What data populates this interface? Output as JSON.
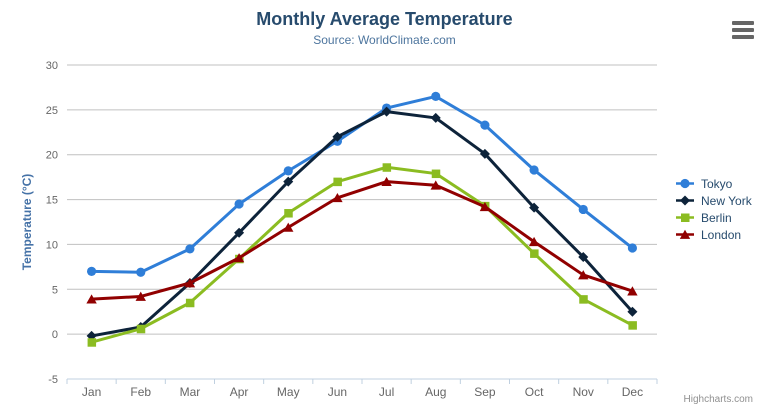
{
  "title": "Monthly Average Temperature",
  "subtitle": "Source: WorldClimate.com",
  "credits": "Highcharts.com",
  "export_menu_icon": "hamburger-icon",
  "colors": {
    "title": "#274b6d",
    "subtitle": "#4d759e",
    "y_axis_title": "#4572a7",
    "axis_labels": "#666666",
    "gridline": "#c0c0c0",
    "axis_line": "#c0d0e0",
    "legend_text": "#274b6d",
    "credits_text": "#909090"
  },
  "chart_data": {
    "type": "line",
    "title": "Monthly Average Temperature",
    "subtitle": "Source: WorldClimate.com",
    "xlabel": "",
    "ylabel": "Temperature (°C)",
    "categories": [
      "Jan",
      "Feb",
      "Mar",
      "Apr",
      "May",
      "Jun",
      "Jul",
      "Aug",
      "Sep",
      "Oct",
      "Nov",
      "Dec"
    ],
    "ylim": [
      -5,
      30
    ],
    "yticks": [
      30,
      25,
      20,
      15,
      10,
      5,
      0,
      -5
    ],
    "grid": true,
    "legend_position": "right",
    "series": [
      {
        "name": "Tokyo",
        "color": "#2f7ed8",
        "marker": "circle",
        "values": [
          7.0,
          6.9,
          9.5,
          14.5,
          18.2,
          21.5,
          25.2,
          26.5,
          23.3,
          18.3,
          13.9,
          9.6
        ]
      },
      {
        "name": "New York",
        "color": "#0d233a",
        "marker": "diamond",
        "values": [
          -0.2,
          0.8,
          5.7,
          11.3,
          17.0,
          22.0,
          24.8,
          24.1,
          20.1,
          14.1,
          8.6,
          2.5
        ]
      },
      {
        "name": "Berlin",
        "color": "#8bbc21",
        "marker": "square",
        "values": [
          -0.9,
          0.6,
          3.5,
          8.4,
          13.5,
          17.0,
          18.6,
          17.9,
          14.3,
          9.0,
          3.9,
          1.0
        ]
      },
      {
        "name": "London",
        "color": "#910000",
        "marker": "triangle",
        "values": [
          3.9,
          4.2,
          5.7,
          8.5,
          11.9,
          15.2,
          17.0,
          16.6,
          14.2,
          10.3,
          6.6,
          4.8
        ]
      }
    ]
  }
}
